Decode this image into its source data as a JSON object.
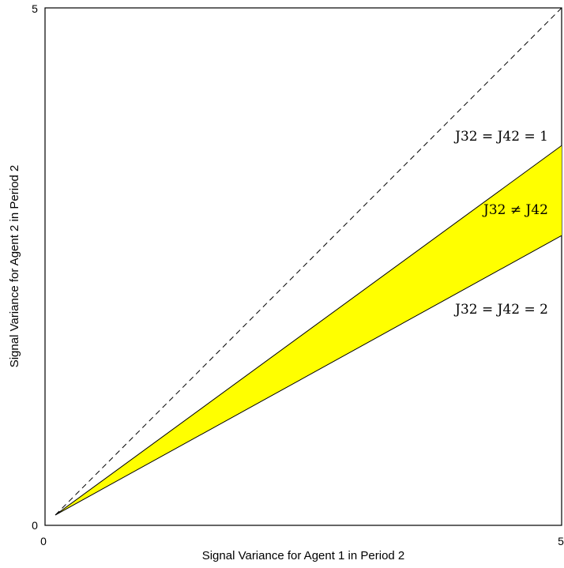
{
  "chart_data": {
    "type": "area",
    "title": "",
    "xlabel": "Signal Variance for Agent 1 in Period 2",
    "ylabel": "Signal Variance for Agent 2 in Period 2",
    "xlim": [
      0,
      5
    ],
    "ylim": [
      0,
      5
    ],
    "x_ticks": [
      "0",
      "5"
    ],
    "y_ticks": [
      "0",
      "5"
    ],
    "grid": false,
    "x_start": 0.1,
    "series": [
      {
        "name": "J32 = J42 = 1",
        "style": "solid",
        "color": "#000000",
        "x": [
          0.1,
          5
        ],
        "y": [
          0.1,
          3.67
        ]
      },
      {
        "name": "J32 = J42 = 2",
        "style": "solid",
        "color": "#000000",
        "x": [
          0.1,
          5
        ],
        "y": [
          0.1,
          2.8
        ]
      },
      {
        "name": "",
        "style": "dashed",
        "color": "#000000",
        "x": [
          0.1,
          5
        ],
        "y": [
          0.1,
          5
        ]
      }
    ],
    "shaded_region": {
      "between": [
        "J32 = J42 = 1",
        "J32 = J42 = 2"
      ],
      "fill": "#ffff00"
    },
    "annotations": [
      {
        "id": "top",
        "text": "J32 = J42 = 1",
        "x": 4.87,
        "y": 3.67
      },
      {
        "id": "mid",
        "text": "J32 ≠ J42",
        "x": 4.87,
        "y": 2.96
      },
      {
        "id": "bot",
        "text": "J32 = J42 = 2",
        "x": 4.87,
        "y": 2.0
      }
    ]
  }
}
